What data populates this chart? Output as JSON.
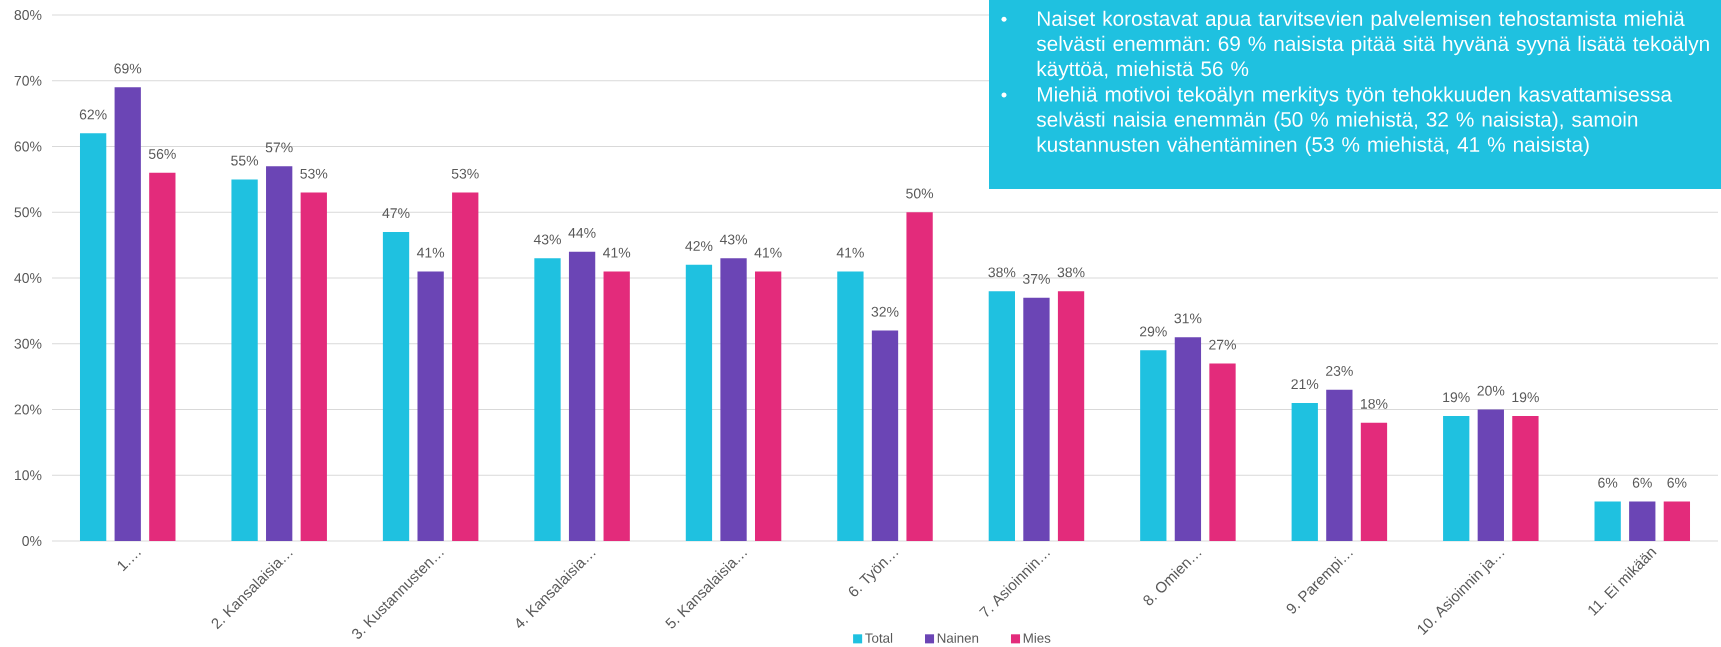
{
  "chart_data": {
    "type": "bar",
    "categories": [
      "1.…",
      "2. Kansalaisia…",
      "3. Kustannusten…",
      "4. Kansalaisia…",
      "5. Kansalaisia…",
      "6. Työn…",
      "7. Asioinnin…",
      "8. Omien…",
      "9. Parempi…",
      "10. Asioinnin ja…",
      "11. Ei mikään"
    ],
    "series": [
      {
        "name": "Total",
        "color": "#1fc1e0",
        "values": [
          62,
          55,
          47,
          43,
          42,
          41,
          38,
          29,
          21,
          19,
          6
        ],
        "value_labels": [
          "62%",
          "55%",
          "47%",
          "43%",
          "42%",
          "41%",
          "38%",
          "29%",
          "21%",
          "19%",
          "6%"
        ]
      },
      {
        "name": "Nainen",
        "color": "#6b45b5",
        "values": [
          69,
          57,
          41,
          44,
          43,
          32,
          37,
          31,
          23,
          20,
          6
        ],
        "value_labels": [
          "69%",
          "57%",
          "41%",
          "44%",
          "43%",
          "32%",
          "37%",
          "31%",
          "23%",
          "20%",
          "6%"
        ]
      },
      {
        "name": "Mies",
        "color": "#e32b7b",
        "values": [
          56,
          53,
          53,
          41,
          41,
          50,
          38,
          27,
          18,
          19,
          6
        ],
        "value_labels": [
          "56%",
          "53%",
          "53%",
          "41%",
          "41%",
          "50%",
          "38%",
          "27%",
          "18%",
          "19%",
          "6%"
        ]
      }
    ],
    "ylim": [
      0,
      80
    ],
    "yticks": [
      {
        "value": 0,
        "label": "0%"
      },
      {
        "value": 10,
        "label": "10%"
      },
      {
        "value": 20,
        "label": "20%"
      },
      {
        "value": 30,
        "label": "30%"
      },
      {
        "value": 40,
        "label": "40%"
      },
      {
        "value": 50,
        "label": "50%"
      },
      {
        "value": 60,
        "label": "60%"
      },
      {
        "value": 70,
        "label": "70%"
      },
      {
        "value": 80,
        "label": "80%"
      }
    ],
    "grid": "y",
    "legend": "bottom",
    "annotations": [
      "Naiset korostavat apua tarvitsevien palvelemisen tehostamista miehiä selvästi enemmän: 69 % naisista pitää sitä hyvänä syynä lisätä tekoälyn käyttöä, miehistä 56 %",
      "Miehiä motivoi tekoälyn merkitys työn tehokkuuden kasvattamisessa selvästi naisia enemmän (50 % miehistä, 32 % naisista), samoin kustannusten vähentäminen (53 % miehistä, 41 % naisista)"
    ]
  }
}
